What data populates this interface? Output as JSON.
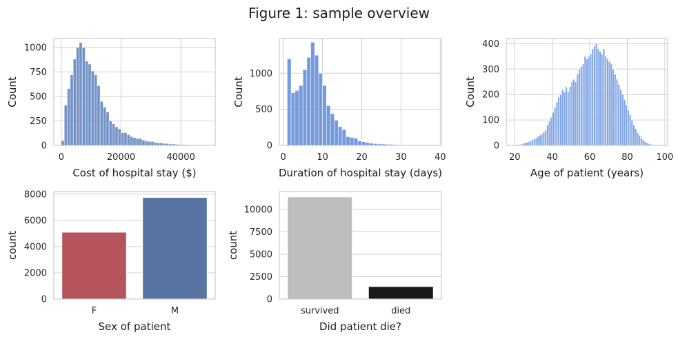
{
  "figure_title": "Figure 1: sample overview",
  "chart_data": [
    {
      "type": "bar",
      "subtype": "histogram",
      "xlabel": "Cost of hospital stay ($)",
      "ylabel": "Count",
      "xlim": [
        -2500,
        51500
      ],
      "ylim": [
        0,
        1090
      ],
      "xticks": [
        0,
        20000,
        40000
      ],
      "yticks": [
        0,
        250,
        500,
        750,
        1000
      ],
      "bin_width": 1000,
      "bin_start": 0,
      "counts": [
        50,
        410,
        580,
        720,
        880,
        1000,
        1050,
        1000,
        860,
        830,
        760,
        720,
        610,
        450,
        390,
        340,
        250,
        220,
        190,
        170,
        130,
        130,
        110,
        90,
        80,
        70,
        70,
        55,
        45,
        40,
        40,
        30,
        25,
        25,
        20,
        20,
        15,
        15,
        12,
        10,
        10,
        8,
        8,
        5,
        5,
        4,
        3,
        2,
        2
      ],
      "color": "#5a7fbd",
      "grid": true
    },
    {
      "type": "bar",
      "subtype": "histogram",
      "xlabel": "Duration of hospital stay (days)",
      "ylabel": "Count",
      "xlim": [
        -1.0,
        40.3
      ],
      "ylim": [
        0,
        1480
      ],
      "xticks": [
        0,
        10,
        20,
        30,
        40
      ],
      "yticks": [
        0,
        500,
        1000
      ],
      "bin_width": 1,
      "bin_start": 1,
      "counts": [
        1200,
        730,
        760,
        830,
        1050,
        1220,
        1430,
        1250,
        1000,
        830,
        550,
        440,
        350,
        260,
        220,
        120,
        110,
        100,
        60,
        50,
        40,
        30,
        25,
        20,
        20,
        15,
        15,
        10,
        10,
        8,
        8,
        6,
        6,
        5,
        4,
        4,
        3,
        3
      ],
      "color": "#5a8ad8",
      "grid": true
    },
    {
      "type": "bar",
      "subtype": "histogram",
      "xlabel": "Age of patient (years)",
      "ylabel": "Count",
      "xlim": [
        15.5,
        101.5
      ],
      "ylim": [
        0,
        420
      ],
      "xticks": [
        20,
        40,
        60,
        80,
        100
      ],
      "yticks": [
        0,
        100,
        200,
        300,
        400
      ],
      "bin_width": 1,
      "bin_start": 20,
      "counts": [
        2,
        3,
        4,
        5,
        8,
        10,
        12,
        15,
        18,
        22,
        25,
        30,
        35,
        40,
        45,
        52,
        60,
        80,
        95,
        110,
        130,
        150,
        170,
        190,
        200,
        220,
        210,
        230,
        210,
        230,
        250,
        260,
        250,
        280,
        300,
        310,
        320,
        350,
        340,
        350,
        360,
        380,
        390,
        400,
        380,
        370,
        360,
        380,
        350,
        340,
        330,
        320,
        300,
        280,
        260,
        240,
        220,
        200,
        180,
        160,
        140,
        120,
        100,
        80,
        65,
        50,
        40,
        30,
        22,
        15,
        10,
        7,
        5,
        3,
        2,
        2,
        1,
        1,
        1
      ],
      "color": "#6b95e0",
      "grid": true
    },
    {
      "type": "bar",
      "categories": [
        "F",
        "M"
      ],
      "values": [
        5100,
        7750
      ],
      "colors": [
        "#b5545c",
        "#5774a3"
      ],
      "xlabel": "Sex of patient",
      "ylabel": "count",
      "ylim": [
        0,
        8200
      ],
      "yticks": [
        0,
        2000,
        4000,
        6000,
        8000
      ],
      "grid": true
    },
    {
      "type": "bar",
      "categories": [
        "survived",
        "died"
      ],
      "values": [
        11400,
        1400
      ],
      "colors": [
        "#bdbdbd",
        "#1a1a1a"
      ],
      "xlabel": "Did patient die?",
      "ylabel": "count",
      "ylim": [
        0,
        12000
      ],
      "yticks": [
        0,
        2500,
        5000,
        7500,
        10000
      ],
      "grid": true
    }
  ]
}
